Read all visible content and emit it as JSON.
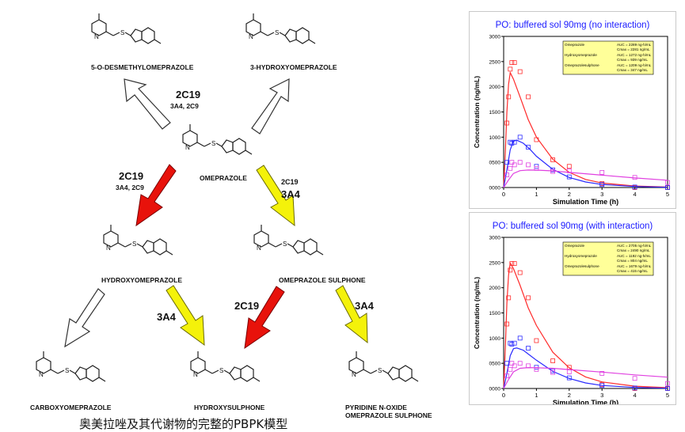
{
  "caption": "奥美拉唑及其代谢物的完整的PBPK模型",
  "molecules": {
    "desmethyl": "5-O-DESMETHYLOMEPRAZOLE",
    "hydroxy_top": "3-HYDROXYOMEPRAZOLE",
    "omeprazole": "OMEPRAZOLE",
    "hydroxy": "HYDROXYOMEPRAZOLE",
    "sulphone": "OMEPRAZOLE SULPHONE",
    "carboxy": "CARBOXYOMEPRAZOLE",
    "hydroxysulphone": "HYDROXYSULPHONE",
    "noxide_line1": "PYRIDINE N-OXIDE",
    "noxide_line2": "OMEPRAZOLE SULPHONE"
  },
  "enzymes": {
    "top_main": "2C19",
    "top_sub": "3A4, 2C9",
    "left_main": "2C19",
    "left_sub": "3A4, 2C9",
    "right_main": "2C19",
    "right_sub": "3A4",
    "hydroxy_to_hs": "3A4",
    "sulph_to_hs": "2C19",
    "sulph_to_nox": "3A4"
  },
  "colors": {
    "red_arrow": "#e8120b",
    "yellow_arrow": "#f4f20a",
    "omeprazole": "#ff2a2a",
    "hydroxyomeprazole": "#2a2aff",
    "sulphone": "#e040e0",
    "title_blue": "#1a1aff",
    "legend_bg": "#ffff99"
  },
  "chart_data": [
    {
      "type": "line",
      "title": "PO: buffered sol 90mg (no interaction)",
      "xlabel": "Simulation Time (h)",
      "ylabel": "Concentration (ng/mL)",
      "xlim": [
        0,
        5
      ],
      "ylim": [
        0,
        3000
      ],
      "xticks": [
        "0",
        "1",
        "2",
        "3",
        "4",
        "5"
      ],
      "yticks": [
        "0000",
        "0500",
        "1000",
        "1500",
        "2000",
        "2500",
        "3000"
      ],
      "legend": {
        "placement": "top-right",
        "rows": [
          {
            "name": "Omeprazole",
            "l1": "AUC = 2289 ng-h/mL",
            "l2": "Cmax = 2281 ng/mL"
          },
          {
            "name": "Hydroxyomeprazole",
            "l1": "AUC = 1272 ng-h/mL",
            "l2": "Cmax = 939 ng/mL"
          },
          {
            "name": "Omeprazolesulphone",
            "l1": "AUC = 1209 ng-h/mL",
            "l2": "Cmax = 347 ng/mL"
          }
        ]
      },
      "series": [
        {
          "name": "Omeprazole",
          "color": "#ff2a2a",
          "line": [
            [
              0,
              0
            ],
            [
              0.05,
              700
            ],
            [
              0.1,
              1500
            ],
            [
              0.15,
              2050
            ],
            [
              0.2,
              2281
            ],
            [
              0.3,
              2150
            ],
            [
              0.5,
              1800
            ],
            [
              0.75,
              1350
            ],
            [
              1,
              1000
            ],
            [
              1.5,
              560
            ],
            [
              2,
              300
            ],
            [
              2.5,
              160
            ],
            [
              3,
              90
            ],
            [
              4,
              30
            ],
            [
              5,
              10
            ]
          ],
          "points": [
            [
              0.1,
              1280
            ],
            [
              0.15,
              1800
            ],
            [
              0.2,
              2350
            ],
            [
              0.25,
              2480
            ],
            [
              0.33,
              2480
            ],
            [
              0.5,
              2300
            ],
            [
              0.75,
              1800
            ],
            [
              1,
              950
            ],
            [
              1.5,
              550
            ],
            [
              2,
              420
            ],
            [
              3,
              80
            ],
            [
              4,
              0
            ],
            [
              5,
              0
            ]
          ]
        },
        {
          "name": "Hydroxyomeprazole",
          "color": "#2a2aff",
          "line": [
            [
              0,
              0
            ],
            [
              0.1,
              350
            ],
            [
              0.2,
              750
            ],
            [
              0.3,
              920
            ],
            [
              0.4,
              939
            ],
            [
              0.6,
              880
            ],
            [
              0.8,
              760
            ],
            [
              1,
              620
            ],
            [
              1.5,
              360
            ],
            [
              2,
              200
            ],
            [
              2.5,
              110
            ],
            [
              3,
              60
            ],
            [
              4,
              20
            ],
            [
              5,
              5
            ]
          ],
          "points": [
            [
              0.1,
              500
            ],
            [
              0.2,
              900
            ],
            [
              0.25,
              880
            ],
            [
              0.33,
              900
            ],
            [
              0.5,
              1000
            ],
            [
              0.75,
              800
            ],
            [
              1,
              420
            ],
            [
              1.5,
              350
            ],
            [
              2,
              210
            ],
            [
              3,
              60
            ],
            [
              4,
              10
            ],
            [
              5,
              0
            ]
          ]
        },
        {
          "name": "Omeprazolesulphone",
          "color": "#e040e0",
          "line": [
            [
              0,
              0
            ],
            [
              0.15,
              150
            ],
            [
              0.3,
              280
            ],
            [
              0.5,
              335
            ],
            [
              0.75,
              347
            ],
            [
              1,
              345
            ],
            [
              1.5,
              330
            ],
            [
              2,
              300
            ],
            [
              3,
              245
            ],
            [
              4,
              190
            ],
            [
              5,
              145
            ]
          ],
          "points": [
            [
              0.1,
              250
            ],
            [
              0.2,
              380
            ],
            [
              0.25,
              500
            ],
            [
              0.33,
              450
            ],
            [
              0.5,
              500
            ],
            [
              0.75,
              450
            ],
            [
              1,
              380
            ],
            [
              1.5,
              320
            ],
            [
              2,
              330
            ],
            [
              3,
              300
            ],
            [
              4,
              200
            ],
            [
              5,
              100
            ]
          ]
        }
      ]
    },
    {
      "type": "line",
      "title": "PO: buffered sol 90mg (with interaction)",
      "xlabel": "Simulation Time (h)",
      "ylabel": "Concentration (ng/mL)",
      "xlim": [
        0,
        5
      ],
      "ylim": [
        0,
        3000
      ],
      "xticks": [
        "0",
        "1",
        "2",
        "3",
        "4",
        "5"
      ],
      "yticks": [
        "0000",
        "0500",
        "1000",
        "1500",
        "2000",
        "2500",
        "3000"
      ],
      "legend": {
        "placement": "top-right",
        "rows": [
          {
            "name": "Omeprazole",
            "l1": "AUC = 2705 ng-h/mL",
            "l2": "Cmax = 2490 ng/mL"
          },
          {
            "name": "Hydroxyomeprazole",
            "l1": "AUC = 1192 ng-h/mL",
            "l2": "Cmax = 804 ng/mL"
          },
          {
            "name": "Omeprazolesulphone",
            "l1": "AUC = 1679 ng-h/mL",
            "l2": "Cmax = 415 ng/mL"
          }
        ]
      },
      "series": [
        {
          "name": "Omeprazole",
          "color": "#ff2a2a",
          "line": [
            [
              0,
              0
            ],
            [
              0.05,
              800
            ],
            [
              0.1,
              1700
            ],
            [
              0.15,
              2250
            ],
            [
              0.2,
              2490
            ],
            [
              0.3,
              2380
            ],
            [
              0.5,
              2050
            ],
            [
              0.75,
              1600
            ],
            [
              1,
              1250
            ],
            [
              1.5,
              720
            ],
            [
              2,
              410
            ],
            [
              2.5,
              230
            ],
            [
              3,
              130
            ],
            [
              4,
              45
            ],
            [
              5,
              15
            ]
          ],
          "points": [
            [
              0.1,
              1280
            ],
            [
              0.15,
              1800
            ],
            [
              0.2,
              2350
            ],
            [
              0.25,
              2480
            ],
            [
              0.33,
              2480
            ],
            [
              0.5,
              2300
            ],
            [
              0.75,
              1800
            ],
            [
              1,
              950
            ],
            [
              1.5,
              550
            ],
            [
              2,
              420
            ],
            [
              3,
              80
            ],
            [
              4,
              0
            ],
            [
              5,
              0
            ]
          ]
        },
        {
          "name": "Hydroxyomeprazole",
          "color": "#2a2aff",
          "line": [
            [
              0,
              0
            ],
            [
              0.1,
              300
            ],
            [
              0.2,
              650
            ],
            [
              0.3,
              790
            ],
            [
              0.4,
              804
            ],
            [
              0.6,
              760
            ],
            [
              0.8,
              660
            ],
            [
              1,
              560
            ],
            [
              1.5,
              340
            ],
            [
              2,
              200
            ],
            [
              2.5,
              110
            ],
            [
              3,
              60
            ],
            [
              4,
              20
            ],
            [
              5,
              5
            ]
          ],
          "points": [
            [
              0.1,
              500
            ],
            [
              0.2,
              900
            ],
            [
              0.25,
              880
            ],
            [
              0.33,
              900
            ],
            [
              0.5,
              1000
            ],
            [
              0.75,
              800
            ],
            [
              1,
              420
            ],
            [
              1.5,
              350
            ],
            [
              2,
              210
            ],
            [
              3,
              60
            ],
            [
              4,
              10
            ],
            [
              5,
              0
            ]
          ]
        },
        {
          "name": "Omeprazolesulphone",
          "color": "#e040e0",
          "line": [
            [
              0,
              0
            ],
            [
              0.15,
              180
            ],
            [
              0.3,
              330
            ],
            [
              0.5,
              400
            ],
            [
              0.75,
              415
            ],
            [
              1,
              412
            ],
            [
              1.5,
              400
            ],
            [
              2,
              375
            ],
            [
              3,
              325
            ],
            [
              4,
              270
            ],
            [
              5,
              225
            ]
          ],
          "points": [
            [
              0.1,
              250
            ],
            [
              0.2,
              380
            ],
            [
              0.25,
              500
            ],
            [
              0.33,
              450
            ],
            [
              0.5,
              500
            ],
            [
              0.75,
              450
            ],
            [
              1,
              380
            ],
            [
              1.5,
              320
            ],
            [
              2,
              330
            ],
            [
              3,
              300
            ],
            [
              4,
              200
            ],
            [
              5,
              100
            ]
          ]
        }
      ]
    }
  ]
}
